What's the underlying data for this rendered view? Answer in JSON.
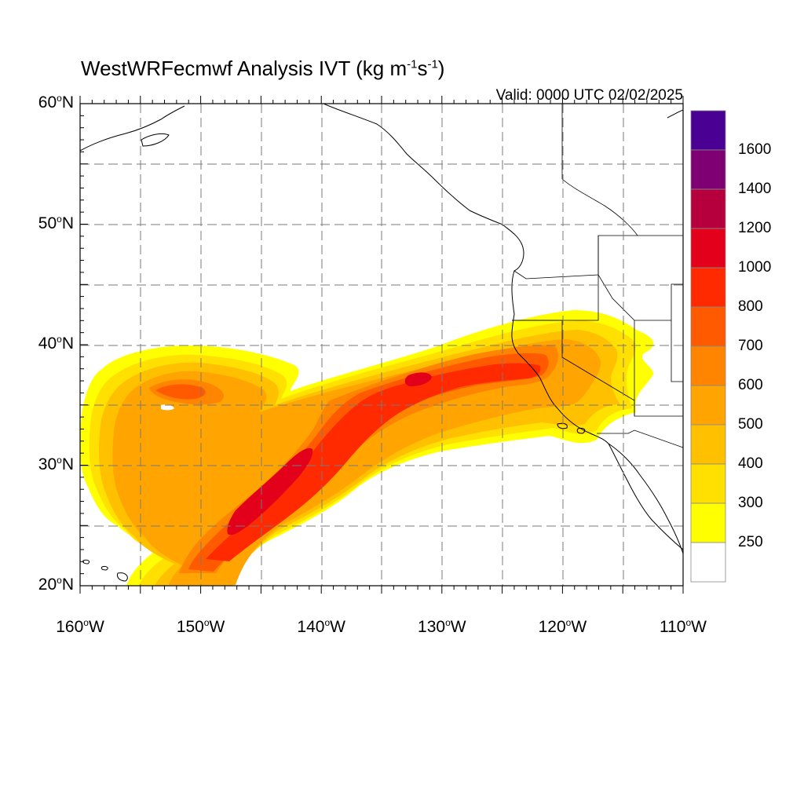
{
  "title": {
    "main": "WestWRFecmwf Analysis IVT (kg m",
    "sup1": "-1",
    "mid": "s",
    "sup2": "-1",
    "end": ")"
  },
  "valid_time": "Valid: 0000 UTC 02/02/2025",
  "lat_labels": [
    {
      "num": "60",
      "hemi": "N",
      "value": 60
    },
    {
      "num": "50",
      "hemi": "N",
      "value": 50
    },
    {
      "num": "40",
      "hemi": "N",
      "value": 40
    },
    {
      "num": "30",
      "hemi": "N",
      "value": 30
    },
    {
      "num": "20",
      "hemi": "N",
      "value": 20
    }
  ],
  "lon_labels": [
    {
      "num": "160",
      "hemi": "W",
      "value": -160
    },
    {
      "num": "150",
      "hemi": "W",
      "value": -150
    },
    {
      "num": "140",
      "hemi": "W",
      "value": -140
    },
    {
      "num": "130",
      "hemi": "W",
      "value": -130
    },
    {
      "num": "120",
      "hemi": "W",
      "value": -120
    },
    {
      "num": "110",
      "hemi": "W",
      "value": -110
    }
  ],
  "colorbar": {
    "labels": [
      "1600",
      "1400",
      "1200",
      "1000",
      "800",
      "700",
      "600",
      "500",
      "400",
      "300",
      "250"
    ],
    "colors": [
      "#4b0094",
      "#7e0072",
      "#b6003d",
      "#e3001a",
      "#ff2a00",
      "#ff5a00",
      "#ff8400",
      "#ffa400",
      "#ffc000",
      "#ffe000",
      "#ffff00",
      "#ffffff"
    ]
  },
  "degree_symbol": "o"
}
